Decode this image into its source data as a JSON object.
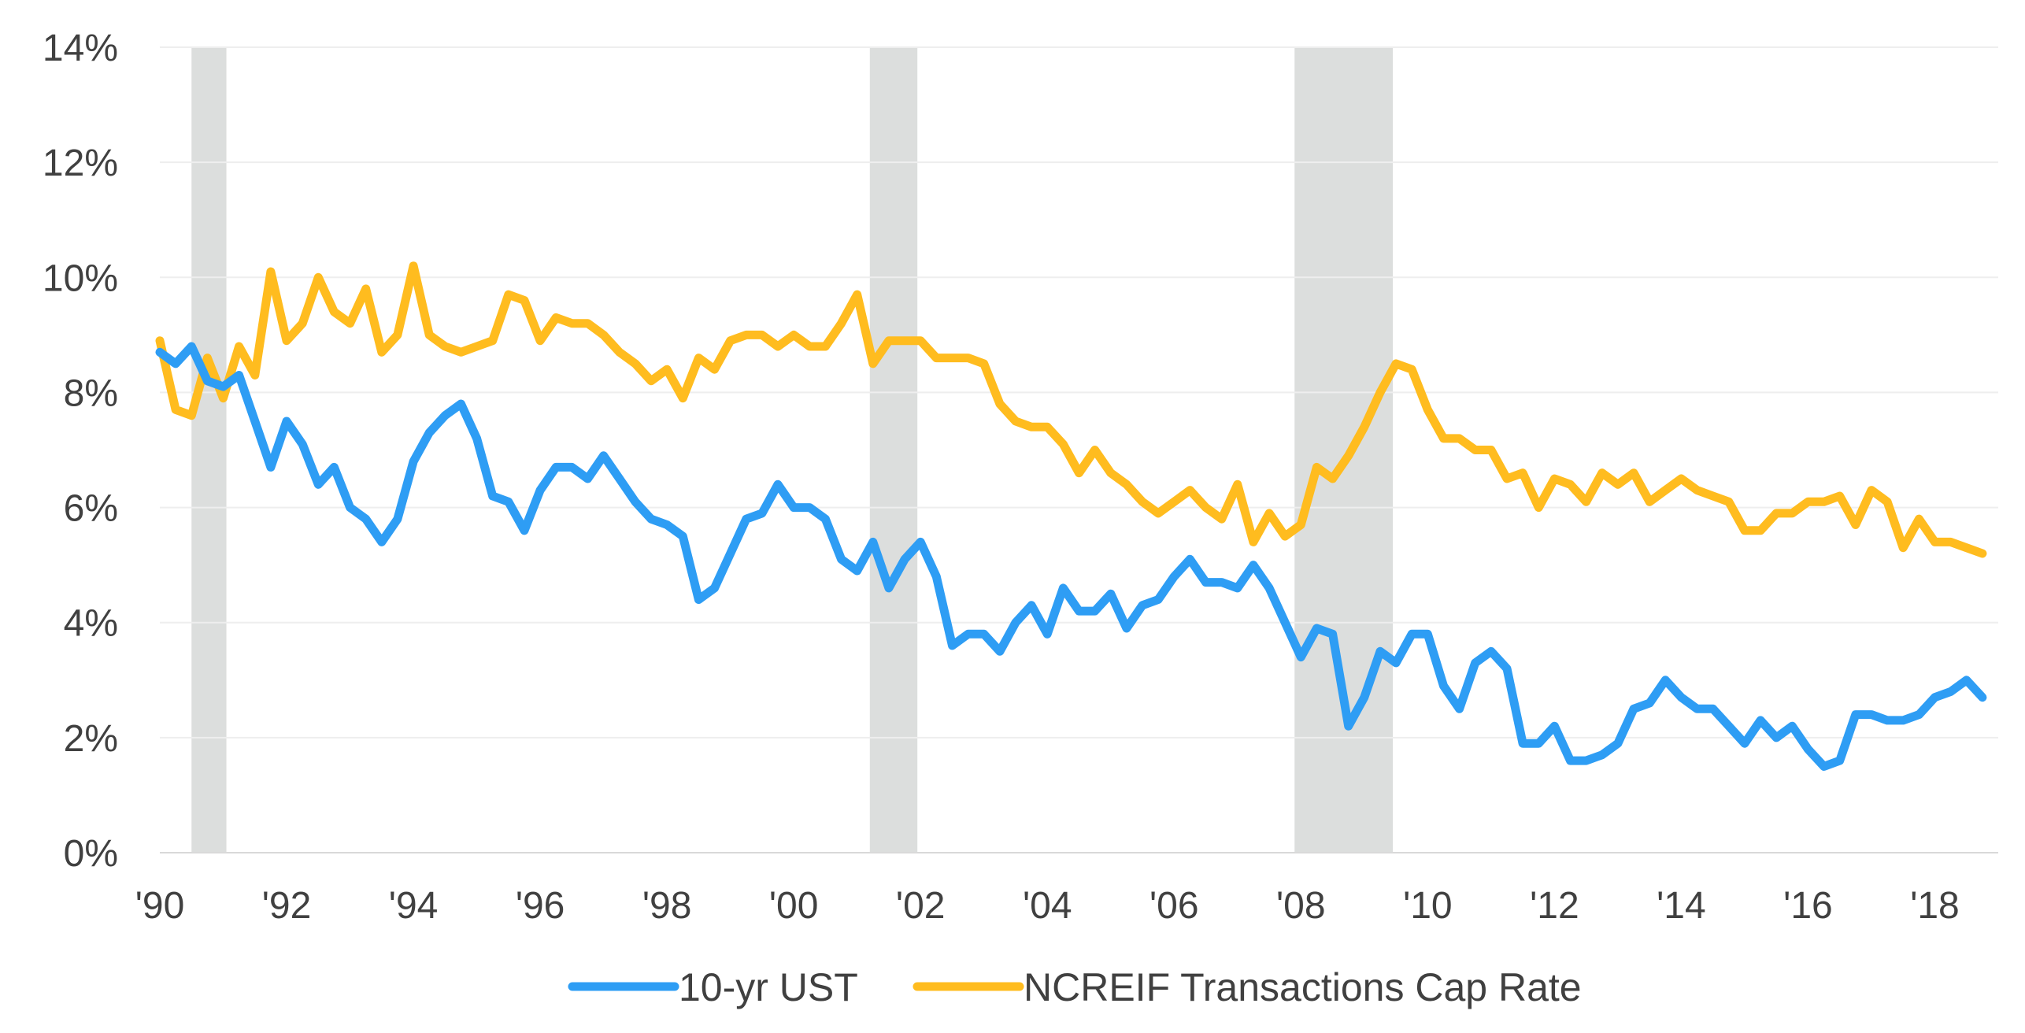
{
  "chart_data": {
    "type": "line",
    "title": "",
    "xlabel": "",
    "ylabel": "",
    "xlim": [
      1990,
      2019
    ],
    "ylim": [
      0,
      14
    ],
    "x_ticks": [
      {
        "value": 1990,
        "label": "'90"
      },
      {
        "value": 1992,
        "label": "'92"
      },
      {
        "value": 1994,
        "label": "'94"
      },
      {
        "value": 1996,
        "label": "'96"
      },
      {
        "value": 1998,
        "label": "'98"
      },
      {
        "value": 2000,
        "label": "'00"
      },
      {
        "value": 2002,
        "label": "'02"
      },
      {
        "value": 2004,
        "label": "'04"
      },
      {
        "value": 2006,
        "label": "'06"
      },
      {
        "value": 2008,
        "label": "'08"
      },
      {
        "value": 2010,
        "label": "'10"
      },
      {
        "value": 2012,
        "label": "'12"
      },
      {
        "value": 2014,
        "label": "'14"
      },
      {
        "value": 2016,
        "label": "'16"
      },
      {
        "value": 2018,
        "label": "'18"
      }
    ],
    "y_ticks": [
      {
        "value": 0,
        "label": "0%"
      },
      {
        "value": 2,
        "label": "2%"
      },
      {
        "value": 4,
        "label": "4%"
      },
      {
        "value": 6,
        "label": "6%"
      },
      {
        "value": 8,
        "label": "8%"
      },
      {
        "value": 10,
        "label": "10%"
      },
      {
        "value": 12,
        "label": "12%"
      },
      {
        "value": 14,
        "label": "14%"
      }
    ],
    "grid": "horizontal",
    "legend_position": "bottom-center",
    "recession_bands": [
      [
        1990.5,
        1991.05
      ],
      [
        2001.2,
        2001.95
      ],
      [
        2007.9,
        2009.45
      ]
    ],
    "recession_color": "#dcdedd",
    "series": [
      {
        "name": "10-yr UST",
        "color": "#2e9df4",
        "x": [
          1990.0,
          1990.25,
          1990.5,
          1990.75,
          1991.0,
          1991.25,
          1991.5,
          1991.75,
          1992.0,
          1992.25,
          1992.5,
          1992.75,
          1993.0,
          1993.25,
          1993.5,
          1993.75,
          1994.0,
          1994.25,
          1994.5,
          1994.75,
          1995.0,
          1995.25,
          1995.5,
          1995.75,
          1996.0,
          1996.25,
          1996.5,
          1996.75,
          1997.0,
          1997.25,
          1997.5,
          1997.75,
          1998.0,
          1998.25,
          1998.5,
          1998.75,
          1999.0,
          1999.25,
          1999.5,
          1999.75,
          2000.0,
          2000.25,
          2000.5,
          2000.75,
          2001.0,
          2001.25,
          2001.5,
          2001.75,
          2002.0,
          2002.25,
          2002.5,
          2002.75,
          2003.0,
          2003.25,
          2003.5,
          2003.75,
          2004.0,
          2004.25,
          2004.5,
          2004.75,
          2005.0,
          2005.25,
          2005.5,
          2005.75,
          2006.0,
          2006.25,
          2006.5,
          2006.75,
          2007.0,
          2007.25,
          2007.5,
          2007.75,
          2008.0,
          2008.25,
          2008.5,
          2008.75,
          2009.0,
          2009.25,
          2009.5,
          2009.75,
          2010.0,
          2010.25,
          2010.5,
          2010.75,
          2011.0,
          2011.25,
          2011.5,
          2011.75,
          2012.0,
          2012.25,
          2012.5,
          2012.75,
          2013.0,
          2013.25,
          2013.5,
          2013.75,
          2014.0,
          2014.25,
          2014.5,
          2014.75,
          2015.0,
          2015.25,
          2015.5,
          2015.75,
          2016.0,
          2016.25,
          2016.5,
          2016.75,
          2017.0,
          2017.25,
          2017.5,
          2017.75,
          2018.0,
          2018.25,
          2018.5,
          2018.75
        ],
        "values": [
          8.7,
          8.5,
          8.8,
          8.2,
          8.1,
          8.3,
          7.5,
          6.7,
          7.5,
          7.1,
          6.4,
          6.7,
          6.0,
          5.8,
          5.4,
          5.8,
          6.8,
          7.3,
          7.6,
          7.8,
          7.2,
          6.2,
          6.1,
          5.6,
          6.3,
          6.7,
          6.7,
          6.5,
          6.9,
          6.5,
          6.1,
          5.8,
          5.7,
          5.5,
          4.4,
          4.6,
          5.2,
          5.8,
          5.9,
          6.4,
          6.0,
          6.0,
          5.8,
          5.1,
          4.9,
          5.4,
          4.6,
          5.1,
          5.4,
          4.8,
          3.6,
          3.8,
          3.8,
          3.5,
          4.0,
          4.3,
          3.8,
          4.6,
          4.2,
          4.2,
          4.5,
          3.9,
          4.3,
          4.4,
          4.8,
          5.1,
          4.7,
          4.7,
          4.6,
          5.0,
          4.6,
          4.0,
          3.4,
          3.9,
          3.8,
          2.2,
          2.7,
          3.5,
          3.3,
          3.8,
          3.8,
          2.9,
          2.5,
          3.3,
          3.5,
          3.2,
          1.9,
          1.9,
          2.2,
          1.6,
          1.6,
          1.7,
          1.9,
          2.5,
          2.6,
          3.0,
          2.7,
          2.5,
          2.5,
          2.2,
          1.9,
          2.3,
          2.0,
          2.2,
          1.8,
          1.5,
          1.6,
          2.4,
          2.4,
          2.3,
          2.3,
          2.4,
          2.7,
          2.8,
          3.0,
          2.7
        ]
      },
      {
        "name": "NCREIF Transactions Cap Rate",
        "color": "#ffbc1f",
        "x": [
          1990.0,
          1990.25,
          1990.5,
          1990.75,
          1991.0,
          1991.25,
          1991.5,
          1991.75,
          1992.0,
          1992.25,
          1992.5,
          1992.75,
          1993.0,
          1993.25,
          1993.5,
          1993.75,
          1994.0,
          1994.25,
          1994.5,
          1994.75,
          1995.0,
          1995.25,
          1995.5,
          1995.75,
          1996.0,
          1996.25,
          1996.5,
          1996.75,
          1997.0,
          1997.25,
          1997.5,
          1997.75,
          1998.0,
          1998.25,
          1998.5,
          1998.75,
          1999.0,
          1999.25,
          1999.5,
          1999.75,
          2000.0,
          2000.25,
          2000.5,
          2000.75,
          2001.0,
          2001.25,
          2001.5,
          2001.75,
          2002.0,
          2002.25,
          2002.5,
          2002.75,
          2003.0,
          2003.25,
          2003.5,
          2003.75,
          2004.0,
          2004.25,
          2004.5,
          2004.75,
          2005.0,
          2005.25,
          2005.5,
          2005.75,
          2006.0,
          2006.25,
          2006.5,
          2006.75,
          2007.0,
          2007.25,
          2007.5,
          2007.75,
          2008.0,
          2008.25,
          2008.5,
          2008.75,
          2009.0,
          2009.25,
          2009.5,
          2009.75,
          2010.0,
          2010.25,
          2010.5,
          2010.75,
          2011.0,
          2011.25,
          2011.5,
          2011.75,
          2012.0,
          2012.25,
          2012.5,
          2012.75,
          2013.0,
          2013.25,
          2013.5,
          2013.75,
          2014.0,
          2014.25,
          2014.5,
          2014.75,
          2015.0,
          2015.25,
          2015.5,
          2015.75,
          2016.0,
          2016.25,
          2016.5,
          2016.75,
          2017.0,
          2017.25,
          2017.5,
          2017.75,
          2018.0,
          2018.25,
          2018.5,
          2018.75
        ],
        "values": [
          8.9,
          7.7,
          7.6,
          8.6,
          7.9,
          8.8,
          8.3,
          10.1,
          8.9,
          9.2,
          10.0,
          9.4,
          9.2,
          9.8,
          8.7,
          9.0,
          10.2,
          9.0,
          8.8,
          8.7,
          8.8,
          8.9,
          9.7,
          9.6,
          8.9,
          9.3,
          9.2,
          9.2,
          9.0,
          8.7,
          8.5,
          8.2,
          8.4,
          7.9,
          8.6,
          8.4,
          8.9,
          9.0,
          9.0,
          8.8,
          9.0,
          8.8,
          8.8,
          9.2,
          9.7,
          8.5,
          8.9,
          8.9,
          8.9,
          8.6,
          8.6,
          8.6,
          8.5,
          7.8,
          7.5,
          7.4,
          7.4,
          7.1,
          6.6,
          7.0,
          6.6,
          6.4,
          6.1,
          5.9,
          6.1,
          6.3,
          6.0,
          5.8,
          6.4,
          5.4,
          5.9,
          5.5,
          5.7,
          6.7,
          6.5,
          6.9,
          7.4,
          8.0,
          8.5,
          8.4,
          7.7,
          7.2,
          7.2,
          7.0,
          7.0,
          6.5,
          6.6,
          6.0,
          6.5,
          6.4,
          6.1,
          6.6,
          6.4,
          6.6,
          6.1,
          6.3,
          6.5,
          6.3,
          6.2,
          6.1,
          5.6,
          5.6,
          5.9,
          5.9,
          6.1,
          6.1,
          6.2,
          5.7,
          6.3,
          6.1,
          5.3,
          5.8,
          5.4,
          5.4,
          5.3,
          5.2
        ]
      }
    ]
  }
}
